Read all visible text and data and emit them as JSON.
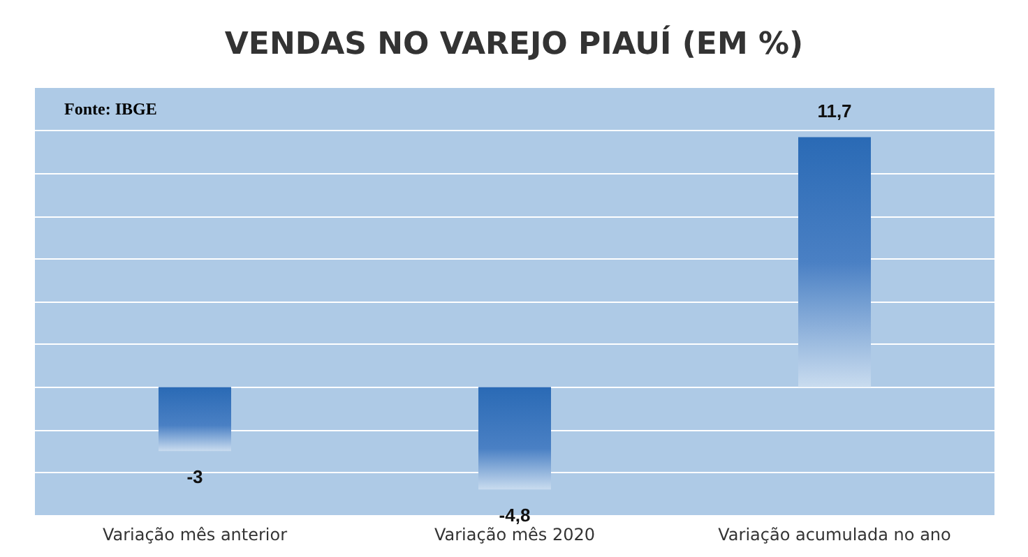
{
  "chart_data": {
    "type": "bar",
    "title": "VENDAS NO VAREJO PIAUÍ (EM %)",
    "categories": [
      "Variação mês anterior",
      "Variação mês 2020",
      "Variação acumulada no ano"
    ],
    "values": [
      -3,
      -4.8,
      11.7
    ],
    "color": "#2a6ab5",
    "value_labels": [
      "-3",
      "-4,8",
      "11,7"
    ],
    "ylim": [
      -6,
      14
    ],
    "yticks": [
      {
        "value": -4,
        "label": null
      },
      {
        "value": -2,
        "label": null
      },
      {
        "value": 0,
        "label": null
      },
      {
        "value": 2,
        "label": null
      },
      {
        "value": 4,
        "label": null
      },
      {
        "value": 6,
        "label": null
      },
      {
        "value": 8,
        "label": null
      },
      {
        "value": 10,
        "label": null
      },
      {
        "value": 12,
        "label": null
      }
    ],
    "tick_labels": "x",
    "grid": "y",
    "annotations": [
      "Fonte: IBGE"
    ]
  }
}
